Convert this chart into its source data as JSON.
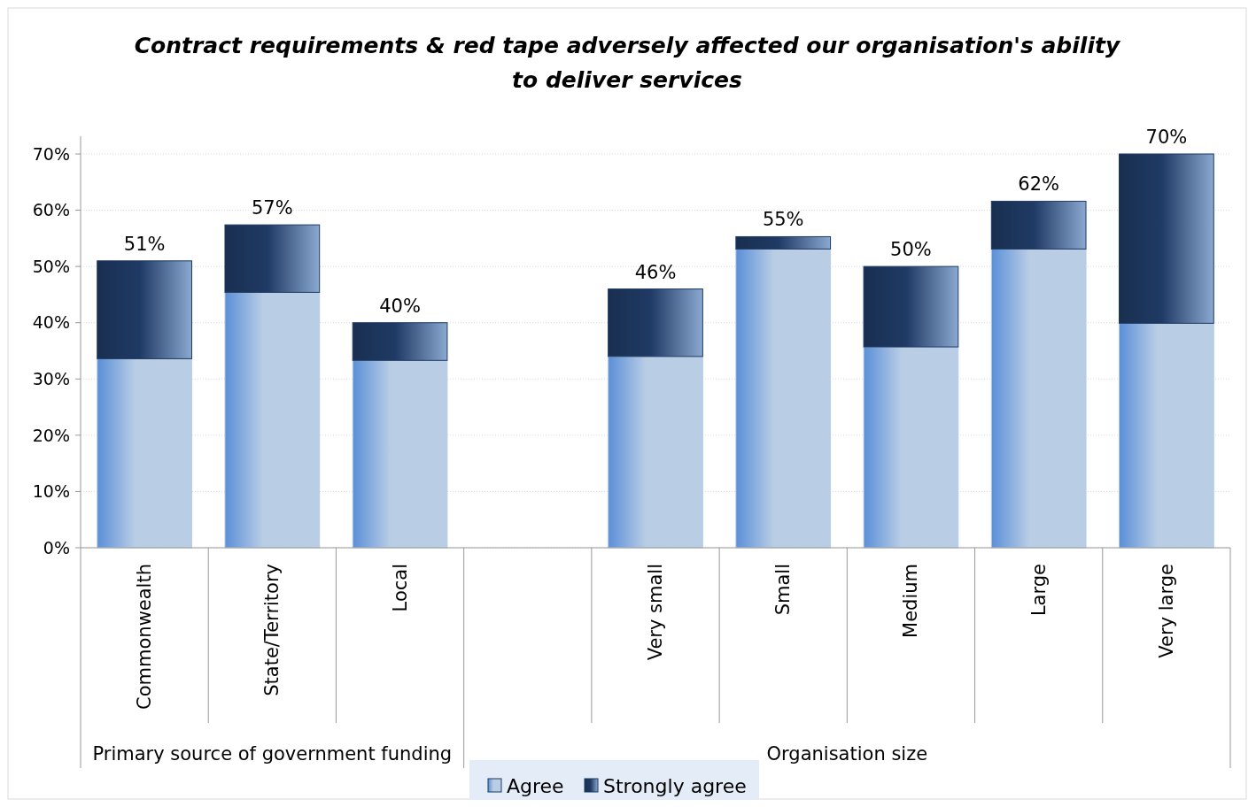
{
  "chart_data": {
    "type": "bar",
    "title": "Contract requirements & red tape adversely affected our organisation's ability to deliver services",
    "categories": [
      "Commonwealth",
      "State/Territory",
      "Local",
      null,
      "Very small",
      "Small",
      "Medium",
      "Large",
      "Very large"
    ],
    "series": [
      {
        "name": "Agree",
        "color": "#b9cde5",
        "values": [
          33.6,
          45.4,
          33.3,
          null,
          34.0,
          53.1,
          35.7,
          53.1,
          39.9
        ]
      },
      {
        "name": "Strongly agree",
        "color": "#1f3a64",
        "values": [
          17.4,
          12.0,
          6.7,
          null,
          12.0,
          2.2,
          14.3,
          8.5,
          30.1
        ]
      }
    ],
    "stacked": true,
    "totals": [
      "51%",
      "57%",
      "40%",
      null,
      "46%",
      "55%",
      "50%",
      "62%",
      "70%"
    ],
    "ylim": [
      0,
      70
    ],
    "yticks": [
      {
        "value": 0,
        "label": "0%"
      },
      {
        "value": 10,
        "label": "10%"
      },
      {
        "value": 20,
        "label": "20%"
      },
      {
        "value": 30,
        "label": "30%"
      },
      {
        "value": 40,
        "label": "40%"
      },
      {
        "value": 50,
        "label": "50%"
      },
      {
        "value": 60,
        "label": "60%"
      },
      {
        "value": 70,
        "label": "70%"
      }
    ],
    "annotations": [
      "Primary source of government funding",
      "Organisation size"
    ],
    "grid": "y",
    "legend": "bottom"
  }
}
